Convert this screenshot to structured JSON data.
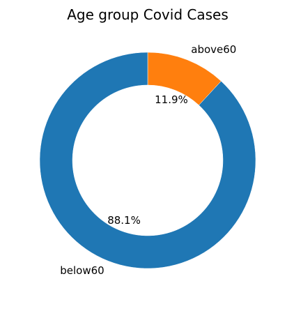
{
  "chart_data": {
    "type": "pie",
    "style": "donut",
    "title": "Age group Covid Cases",
    "categories": [
      "above60",
      "below60"
    ],
    "values": [
      11.9,
      88.1
    ],
    "percent_labels": [
      "11.9%",
      "88.1%"
    ],
    "colors": [
      "#ff7f0e",
      "#1f77b4"
    ],
    "start_angle_deg": 90,
    "direction": "clockwise",
    "legend": "none"
  }
}
